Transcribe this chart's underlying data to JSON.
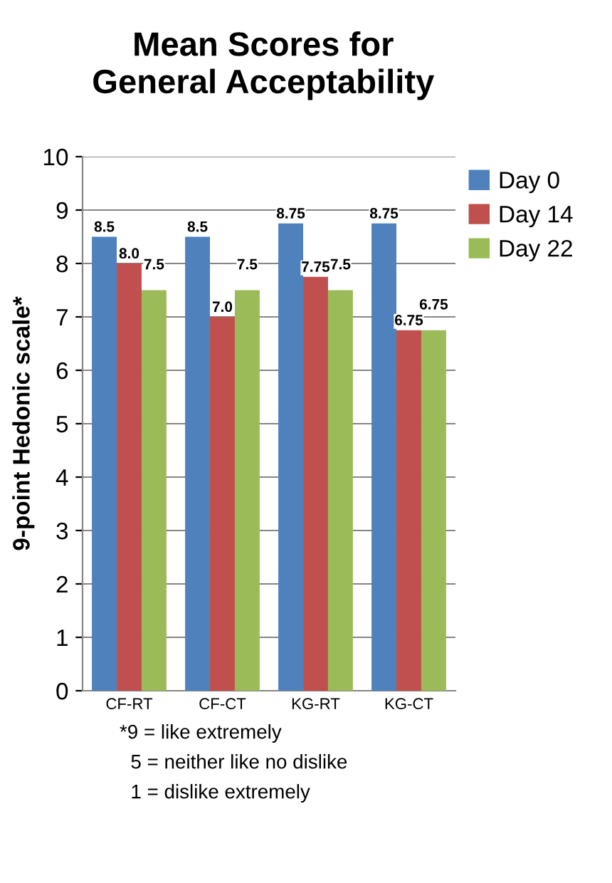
{
  "chart_data": {
    "type": "bar",
    "title": "Mean Scores for\nGeneral Acceptability",
    "ylabel": "9-point Hedonic scale*",
    "categories": [
      "CF-RT",
      "CF-CT",
      "KG-RT",
      "KG-CT"
    ],
    "series": [
      {
        "name": "Day 0",
        "color": "#4f81bd",
        "values": [
          8.5,
          8.5,
          8.75,
          8.75
        ],
        "value_labels": [
          "8.5",
          "8.5",
          "8.75",
          "8.75"
        ]
      },
      {
        "name": "Day 14",
        "color": "#c0504d",
        "values": [
          8.0,
          7.0,
          7.75,
          6.75
        ],
        "value_labels": [
          "8.0",
          "7.0",
          "7.75",
          "6.75"
        ]
      },
      {
        "name": "Day 22",
        "color": "#9bbb59",
        "values": [
          7.5,
          7.5,
          7.5,
          6.75
        ],
        "value_labels": [
          "7.5",
          "7.5",
          "7.5",
          "6.75"
        ]
      }
    ],
    "ylim": [
      0,
      10
    ],
    "yticks": [
      0,
      1,
      2,
      3,
      4,
      5,
      6,
      7,
      8,
      9,
      10
    ],
    "grid": "y",
    "legend": "top right",
    "annotations": [
      "*9 = like extremely",
      "  5 = neither like no dislike",
      "  1 = dislike extremely"
    ]
  }
}
